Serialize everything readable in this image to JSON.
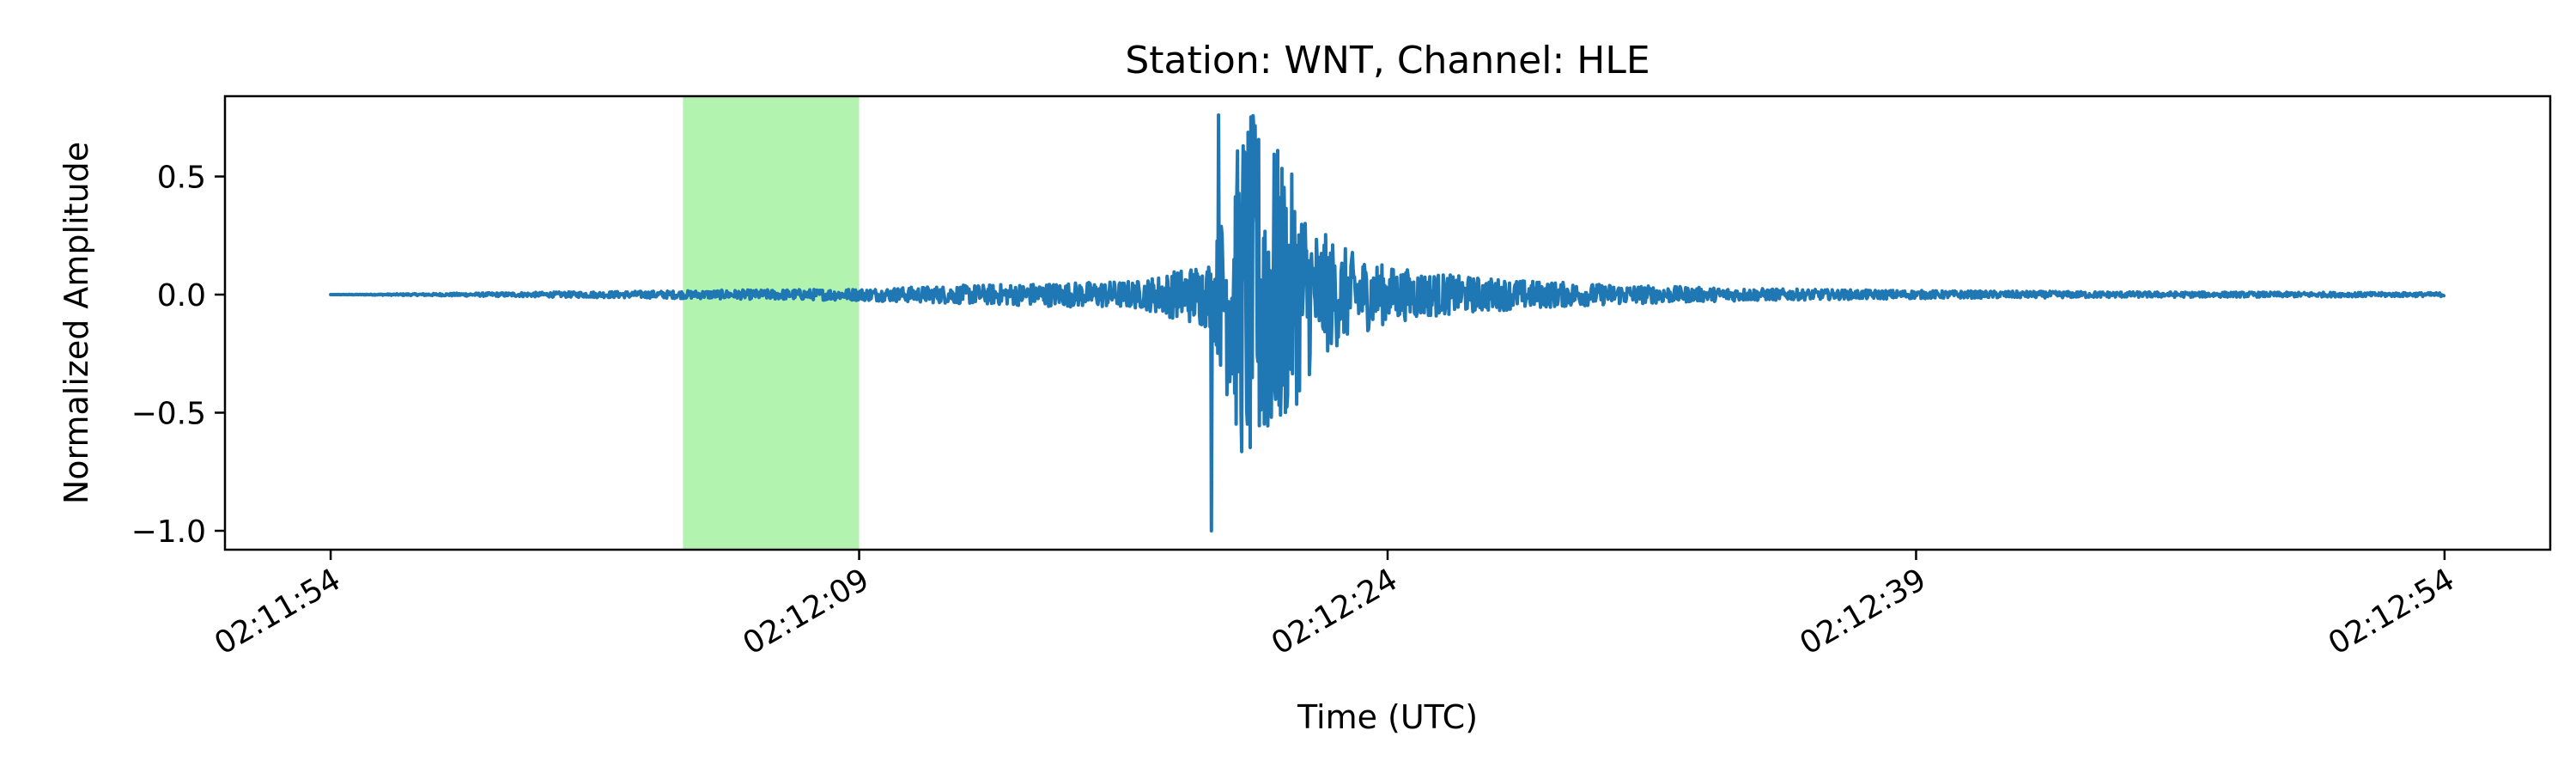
{
  "chart_data": {
    "type": "line",
    "title": "Station: WNT, Channel: HLE",
    "xlabel": "Time (UTC)",
    "ylabel": "Normalized Amplitude",
    "x_unit": "time of day (UTC)",
    "xlim": [
      "02:11:51",
      "02:12:57"
    ],
    "ylim": [
      -1.08,
      0.84
    ],
    "x_ticks": [
      "02:11:54",
      "02:12:09",
      "02:12:24",
      "02:12:39",
      "02:12:54"
    ],
    "y_ticks": [
      0.5,
      0.0,
      -0.5,
      -1.0
    ],
    "y_tick_labels": [
      "0.5",
      "0.0",
      "−0.5",
      "−1.0"
    ],
    "grid": false,
    "legend": "none",
    "highlight": {
      "x_start": "02:12:04",
      "x_end": "02:12:09",
      "color": "#b3f3b0"
    },
    "series": [
      {
        "color": "#1f77b4",
        "x": [
          "02:11:54",
          "02:12:09",
          "02:12:12",
          "02:12:17",
          "02:12:19",
          "02:12:20",
          "02:12:21",
          "02:12:22",
          "02:12:23",
          "02:12:24",
          "02:12:26",
          "02:12:28",
          "02:12:30",
          "02:12:33",
          "02:12:36",
          "02:12:40",
          "02:12:45",
          "02:12:50",
          "02:12:54"
        ],
        "envelope": [
          0.0,
          0.025,
          0.04,
          0.06,
          0.15,
          0.8,
          0.6,
          0.28,
          0.18,
          0.12,
          0.08,
          0.06,
          0.045,
          0.03,
          0.022,
          0.016,
          0.012,
          0.01,
          0.008
        ],
        "peak_max": {
          "x": "02:12:19.2",
          "y": 0.76
        },
        "peak_min": {
          "x": "02:12:19.0",
          "y": -1.0
        }
      }
    ]
  }
}
